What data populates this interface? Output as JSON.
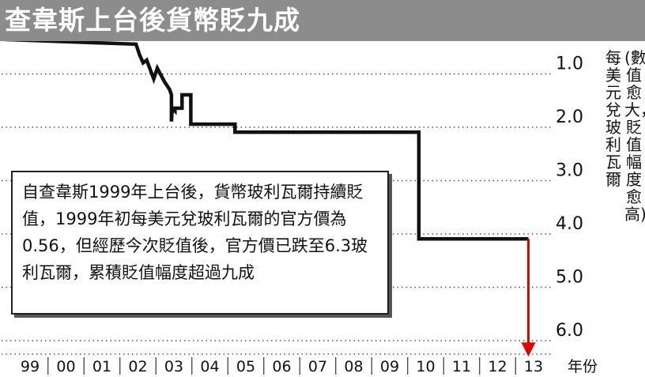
{
  "title": "查韋斯上台後貨幣貶九成",
  "chart_data": {
    "type": "line",
    "title": "查韋斯上台後貨幣貶九成",
    "xlabel": "年份",
    "ylabel": "每美元兌玻利瓦爾",
    "ylabel_note": "(數值愈大，貶值幅度愈高)",
    "x_categories": [
      "99",
      "00",
      "01",
      "02",
      "03",
      "04",
      "05",
      "06",
      "07",
      "08",
      "09",
      "10",
      "11",
      "12",
      "13"
    ],
    "yticks": [
      "1.0",
      "2.0",
      "3.0",
      "4.0",
      "5.0",
      "6.0"
    ],
    "ylim": [
      0.0,
      6.3
    ],
    "y_reversed": true,
    "grid": "horizontal-dotted",
    "series": [
      {
        "x": [
          1999.0,
          2002.0,
          2002.1,
          2002.2,
          2002.3,
          2002.5,
          2002.6,
          2002.8,
          2002.95,
          2003.0,
          2003.0,
          2003.02,
          2003.1,
          2003.1,
          2003.3,
          2003.3,
          2003.55,
          2003.55,
          2004.8,
          2004.8,
          2010.0,
          2010.0,
          2013.1
        ],
        "y": [
          0.56,
          0.65,
          0.85,
          1.0,
          0.95,
          1.3,
          1.1,
          1.35,
          1.5,
          1.6,
          2.1,
          1.85,
          1.9,
          1.85,
          1.85,
          1.6,
          1.6,
          2.15,
          2.15,
          2.3,
          2.3,
          4.3,
          4.3
        ]
      }
    ],
    "devaluation": {
      "x": [
        2013.1,
        2013.1
      ],
      "y": [
        4.3,
        6.3
      ],
      "color": "#e00000",
      "label": ""
    },
    "annotation": "自查韋斯1999年上台後，貨幣玻利瓦爾持續貶值，1999年初每美元兌玻利瓦爾的官方價為0.56，但經歷今次貶值後，官方價已跌至6.3玻利瓦爾，累積貶值幅度超過九成"
  },
  "colors": {
    "line": "#111111",
    "arrow": "#e00000",
    "title_bar": "#8c8c8c",
    "title_text": "#ffffff"
  }
}
